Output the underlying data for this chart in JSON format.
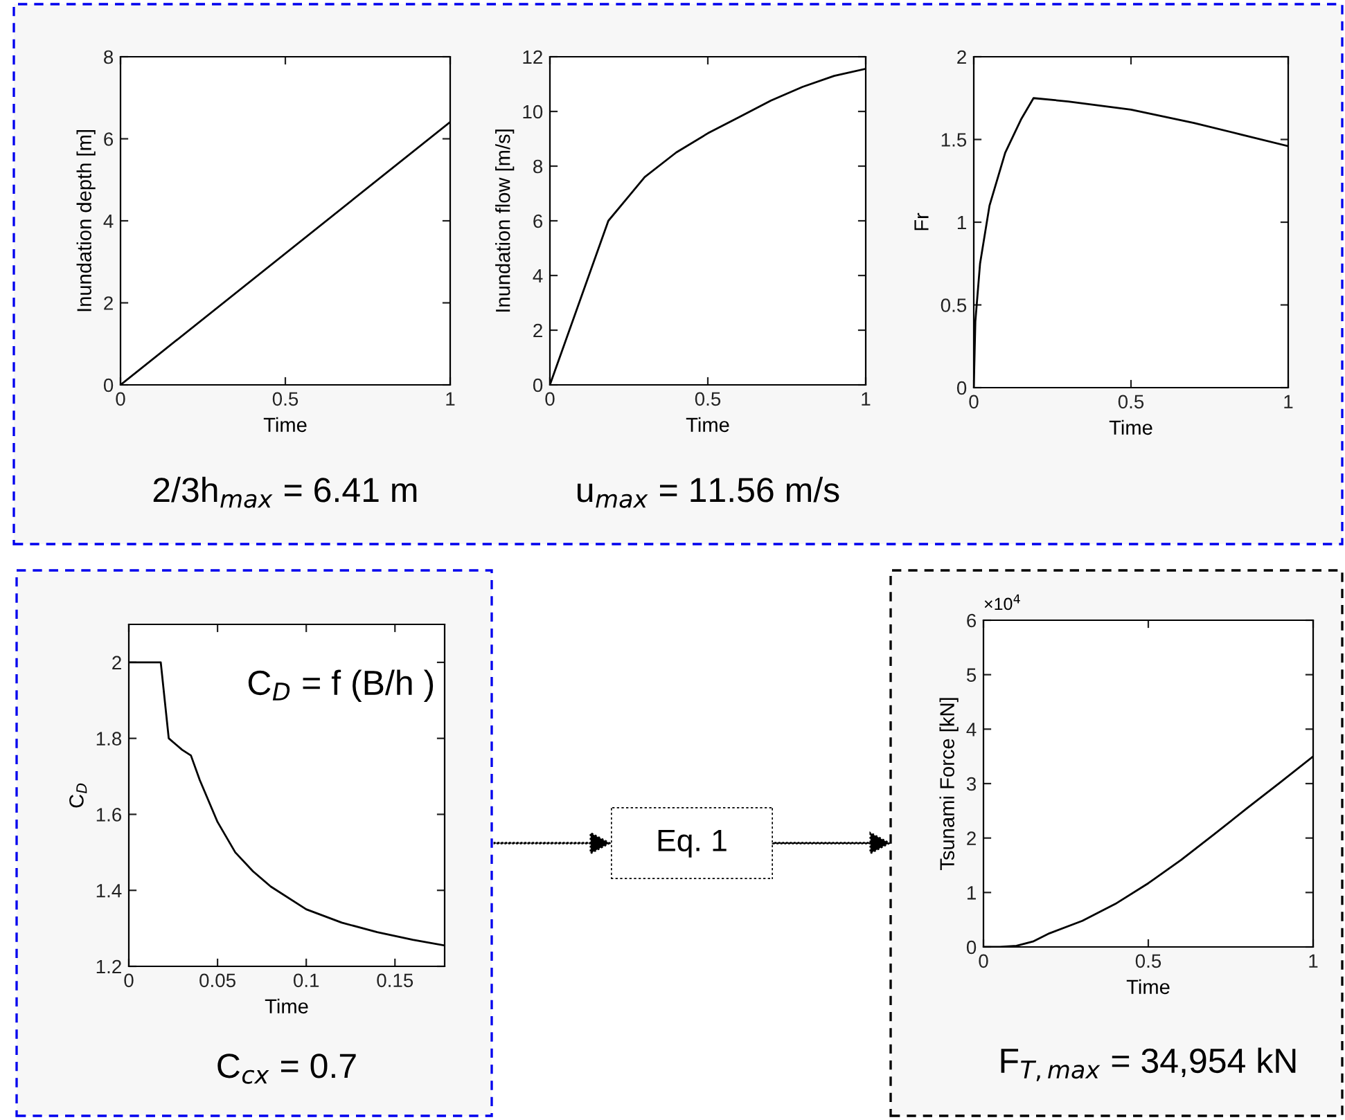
{
  "chart_data": [
    {
      "type": "line",
      "xlabel": "Time",
      "ylabel": "Inundation depth [m]",
      "xlim": [
        0,
        1
      ],
      "ylim": [
        0,
        8
      ],
      "xticks": [
        0,
        0.5,
        1
      ],
      "yticks": [
        0,
        2,
        4,
        6,
        8
      ],
      "annotations": [
        "2/3h$_{max}$ = 6.41 m"
      ],
      "series": [
        {
          "color": "#000000",
          "x": [
            0,
            1
          ],
          "values": [
            0,
            6.41
          ]
        }
      ]
    },
    {
      "type": "line",
      "xlabel": "Time",
      "ylabel": "Inundation flow [m/s]",
      "xlim": [
        0,
        1
      ],
      "ylim": [
        0,
        12
      ],
      "xticks": [
        0,
        0.5,
        1
      ],
      "yticks": [
        0,
        2,
        4,
        6,
        8,
        10,
        12
      ],
      "annotations": [
        "u$_{max}$ = 11.56 m/s"
      ],
      "series": [
        {
          "color": "#000000",
          "x": [
            0,
            0.185,
            0.25,
            0.3,
            0.4,
            0.5,
            0.6,
            0.7,
            0.8,
            0.9,
            1
          ],
          "values": [
            0,
            6.0,
            6.9,
            7.6,
            8.5,
            9.2,
            9.8,
            10.4,
            10.9,
            11.3,
            11.56
          ]
        }
      ]
    },
    {
      "type": "line",
      "xlabel": "Time",
      "ylabel": "Fr",
      "xlim": [
        0,
        1
      ],
      "ylim": [
        0,
        2
      ],
      "xticks": [
        0,
        0.5,
        1
      ],
      "yticks": [
        0,
        0.5,
        1,
        1.5,
        2
      ],
      "series": [
        {
          "color": "#000000",
          "x": [
            0,
            0.005,
            0.02,
            0.05,
            0.1,
            0.15,
            0.19,
            0.3,
            0.5,
            0.7,
            0.85,
            1
          ],
          "values": [
            0,
            0.4,
            0.75,
            1.1,
            1.42,
            1.62,
            1.75,
            1.73,
            1.68,
            1.6,
            1.53,
            1.46
          ]
        }
      ]
    },
    {
      "type": "line",
      "xlabel": "Time",
      "ylabel": "C$_{D}$",
      "xlim": [
        0,
        0.178
      ],
      "ylim": [
        1.2,
        2.1
      ],
      "xticks": [
        0,
        0.05,
        0.1,
        0.15
      ],
      "yticks": [
        1.2,
        1.4,
        1.6,
        1.8,
        2
      ],
      "annotations": [
        "C$_{D}$ = f (B/h )",
        "C$_{cx}$ = 0.7"
      ],
      "series": [
        {
          "color": "#000000",
          "x": [
            0,
            0.018,
            0.0225,
            0.03,
            0.035,
            0.04,
            0.05,
            0.06,
            0.07,
            0.08,
            0.1,
            0.12,
            0.14,
            0.16,
            0.178
          ],
          "values": [
            2,
            2,
            1.8,
            1.77,
            1.755,
            1.69,
            1.58,
            1.5,
            1.45,
            1.41,
            1.35,
            1.315,
            1.29,
            1.27,
            1.255
          ]
        }
      ]
    },
    {
      "type": "other",
      "annotations": [
        "Eq. 1"
      ]
    },
    {
      "type": "line",
      "xlabel": "Time",
      "ylabel": "Tsunami Force [kN]",
      "xlim": [
        0,
        1
      ],
      "ylim": [
        0,
        6
      ],
      "xticks": [
        0,
        0.5,
        1
      ],
      "yticks": [
        0,
        1,
        2,
        3,
        4,
        5,
        6
      ],
      "annotations": [
        "×10$^{4}$",
        "F$_{T,max}$ = 34,954 kN"
      ],
      "series": [
        {
          "color": "#000000",
          "x": [
            0,
            0.05,
            0.1,
            0.15,
            0.2,
            0.3,
            0.4,
            0.5,
            0.6,
            0.7,
            0.8,
            0.9,
            1
          ],
          "values": [
            0,
            0,
            0.02,
            0.1,
            0.25,
            0.48,
            0.79,
            1.17,
            1.6,
            2.07,
            2.55,
            3.02,
            3.5
          ]
        }
      ]
    }
  ]
}
